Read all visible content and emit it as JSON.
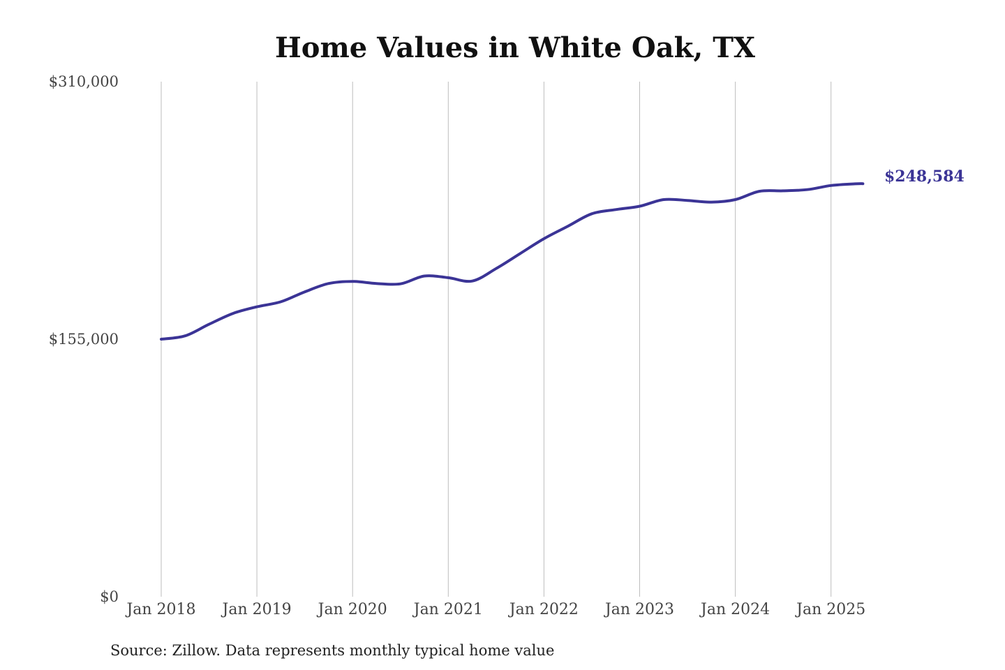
{
  "source_note": "Source: Zillow. Data represents monthly typical home value",
  "chart_data": {
    "type": "line",
    "title": "Home Values in White Oak, TX",
    "xlabel": "",
    "ylabel": "",
    "ylim": [
      0,
      310000
    ],
    "y_ticks": [
      "$310,000",
      "$155,000",
      "$0"
    ],
    "y_tick_values": [
      310000,
      155000,
      0
    ],
    "x_ticks": [
      "Jan 2018",
      "Jan 2019",
      "Jan 2020",
      "Jan 2021",
      "Jan 2022",
      "Jan 2023",
      "Jan 2024",
      "Jan 2025"
    ],
    "grid": "vertical",
    "line_color": "#3b3496",
    "end_label": "$248,584",
    "series": [
      {
        "points": [
          [
            "2018-01",
            155000
          ],
          [
            "2018-04",
            157000
          ],
          [
            "2018-07",
            164000
          ],
          [
            "2018-10",
            170500
          ],
          [
            "2019-01",
            174500
          ],
          [
            "2019-04",
            177500
          ],
          [
            "2019-07",
            183500
          ],
          [
            "2019-10",
            188500
          ],
          [
            "2020-01",
            189800
          ],
          [
            "2020-04",
            188500
          ],
          [
            "2020-07",
            188300
          ],
          [
            "2020-10",
            193000
          ],
          [
            "2021-01",
            192000
          ],
          [
            "2021-04",
            190000
          ],
          [
            "2021-07",
            197500
          ],
          [
            "2021-10",
            206500
          ],
          [
            "2022-01",
            215500
          ],
          [
            "2022-04",
            223000
          ],
          [
            "2022-07",
            230500
          ],
          [
            "2022-10",
            233000
          ],
          [
            "2023-01",
            235000
          ],
          [
            "2023-04",
            239000
          ],
          [
            "2023-07",
            238500
          ],
          [
            "2023-10",
            237500
          ],
          [
            "2024-01",
            239000
          ],
          [
            "2024-04",
            244000
          ],
          [
            "2024-07",
            244300
          ],
          [
            "2024-10",
            245000
          ],
          [
            "2025-01",
            247500
          ],
          [
            "2025-04",
            248500
          ],
          [
            "2025-05",
            248584
          ]
        ]
      }
    ]
  }
}
